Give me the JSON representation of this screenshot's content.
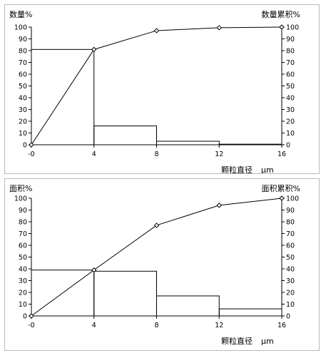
{
  "chart_data": [
    {
      "type": "bar",
      "title_left": "数量%",
      "title_right": "数量累积%",
      "xlabel": "颗粒直径",
      "xunit": "μm",
      "x_ticks": [
        "-0",
        "4",
        "8",
        "12",
        "16"
      ],
      "xlim": [
        0,
        16
      ],
      "ylim": [
        0,
        100
      ],
      "ylim_right": [
        0,
        100
      ],
      "y_ticks": [
        0,
        10,
        20,
        30,
        40,
        50,
        60,
        70,
        80,
        90,
        100
      ],
      "bins": [
        {
          "from": 0,
          "to": 4,
          "value": 81
        },
        {
          "from": 4,
          "to": 8,
          "value": 16
        },
        {
          "from": 8,
          "to": 12,
          "value": 3
        },
        {
          "from": 12,
          "to": 16,
          "value": 0.5
        }
      ],
      "cumulative": {
        "x": [
          0,
          4,
          8,
          12,
          16
        ],
        "y": [
          0,
          81,
          97,
          99.5,
          100
        ]
      }
    },
    {
      "type": "bar",
      "title_left": "面积%",
      "title_right": "面积累积%",
      "xlabel": "颗粒直径",
      "xunit": "μm",
      "x_ticks": [
        "-0",
        "4",
        "8",
        "12",
        "16"
      ],
      "xlim": [
        0,
        16
      ],
      "ylim": [
        0,
        100
      ],
      "ylim_right": [
        0,
        100
      ],
      "y_ticks": [
        0,
        10,
        20,
        30,
        40,
        50,
        60,
        70,
        80,
        90,
        100
      ],
      "bins": [
        {
          "from": 0,
          "to": 4,
          "value": 39
        },
        {
          "from": 4,
          "to": 8,
          "value": 38
        },
        {
          "from": 8,
          "to": 12,
          "value": 17
        },
        {
          "from": 12,
          "to": 16,
          "value": 6
        }
      ],
      "cumulative": {
        "x": [
          0,
          4,
          8,
          12,
          16
        ],
        "y": [
          0,
          39,
          77,
          94,
          100
        ]
      }
    }
  ]
}
